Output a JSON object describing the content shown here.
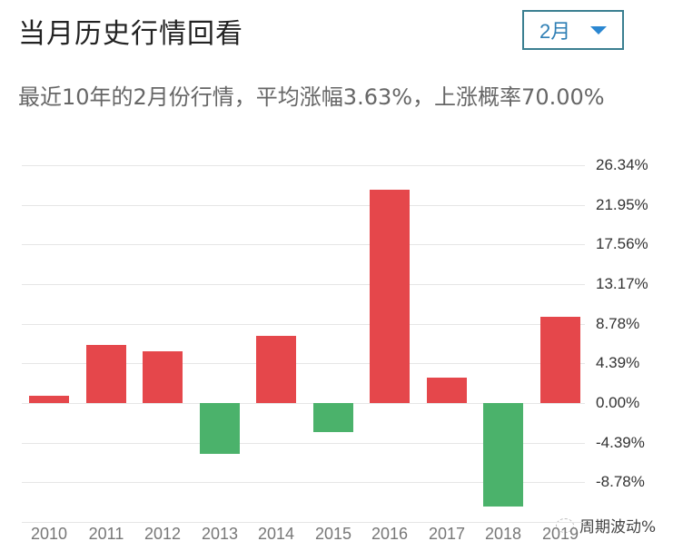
{
  "header": {
    "title": "当月历史行情回看",
    "month_select": {
      "selected": "2月",
      "icon": "caret-down-icon"
    }
  },
  "summary": {
    "text": "最近10年的2月份行情，平均涨幅3.63%，上涨概率70.00%"
  },
  "watermark": {
    "text": "周期波动%",
    "icon": "wechat-icon"
  },
  "colors": {
    "up": "#e5474b",
    "down": "#4bb26b",
    "grid": "#e6e6e6",
    "accent": "#2b87d1"
  },
  "chart_data": {
    "type": "bar",
    "title": "当月历史行情回看",
    "subtitle": "最近10年的2月份行情，平均涨幅3.63%，上涨概率70.00%",
    "xlabel": "",
    "ylabel": "",
    "categories": [
      "2010",
      "2011",
      "2012",
      "2013",
      "2014",
      "2015",
      "2016",
      "2017",
      "2018",
      "2019"
    ],
    "values": [
      0.8,
      6.4,
      5.7,
      -5.6,
      7.4,
      -3.2,
      23.6,
      2.8,
      -11.5,
      9.5
    ],
    "yticks": [
      "26.34%",
      "21.95%",
      "17.56%",
      "13.17%",
      "8.78%",
      "4.39%",
      "0.00%",
      "-4.39%",
      "-8.78%"
    ],
    "ytick_values": [
      26.34,
      21.95,
      17.56,
      13.17,
      8.78,
      4.39,
      0.0,
      -4.39,
      -8.78
    ],
    "ylim": [
      -13.17,
      26.34
    ],
    "y_axis_position": "right",
    "grid": true,
    "legend": null,
    "bar_colors": {
      "positive": "#e5474b",
      "negative": "#4bb26b"
    }
  }
}
